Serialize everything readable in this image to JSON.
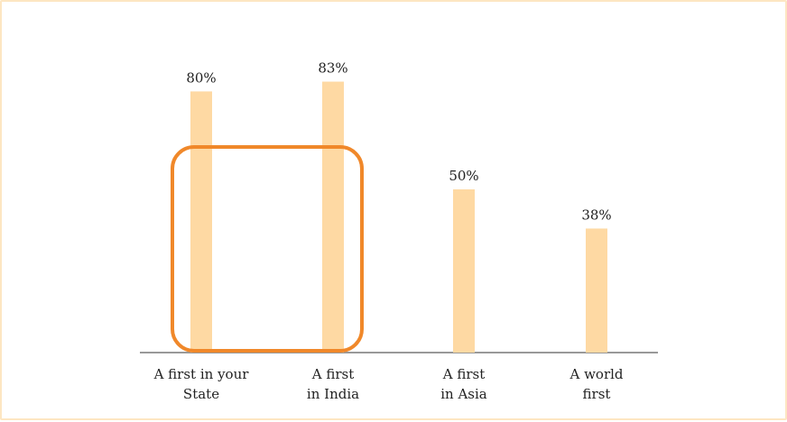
{
  "chart_data": {
    "type": "bar",
    "categories": [
      [
        "A first in your",
        "State"
      ],
      [
        "A first",
        "in India"
      ],
      [
        "A first",
        "in Asia"
      ],
      [
        "A world",
        "first"
      ]
    ],
    "values": [
      80,
      83,
      50,
      38
    ],
    "value_labels": [
      "80%",
      "83%",
      "50%",
      "38%"
    ],
    "ylim": [
      0,
      100
    ],
    "title": "",
    "xlabel": "",
    "ylabel": "",
    "grid": false,
    "legend": "none",
    "highlight": {
      "categories": [
        0,
        1
      ]
    },
    "colors": {
      "bar": "#fed9a3",
      "highlight": "#f0882a",
      "axis": "#999999",
      "frame": "#fde6c2"
    }
  }
}
